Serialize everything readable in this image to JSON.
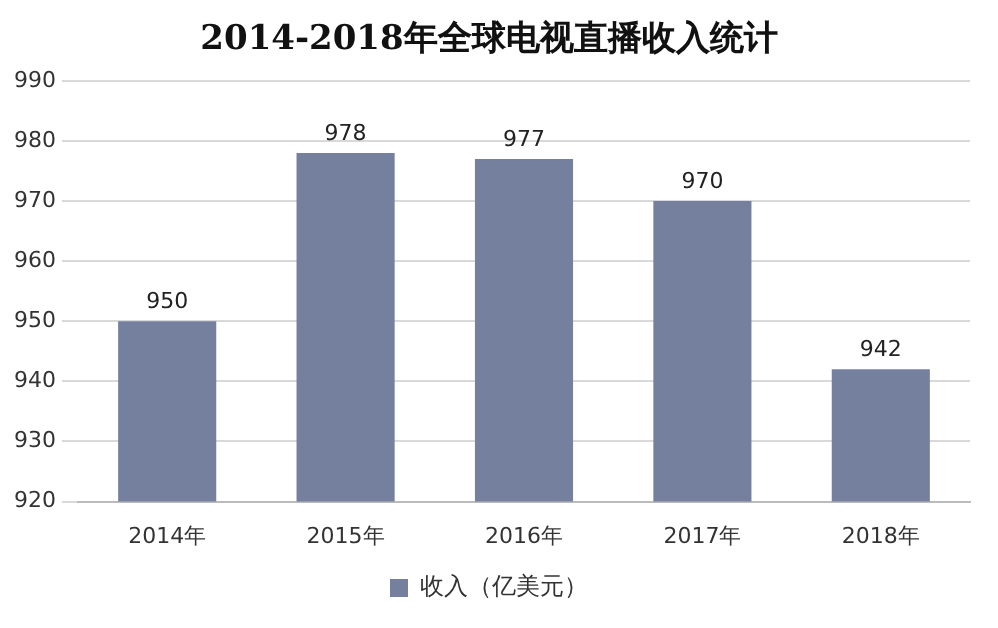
{
  "chart_data": {
    "type": "bar",
    "title": "2014-2018年全球电视直播收入统计",
    "categories": [
      "2014年",
      "2015年",
      "2016年",
      "2017年",
      "2018年"
    ],
    "series": [
      {
        "name": "收入（亿美元）",
        "color": "#75809f",
        "values": [
          950,
          978,
          977,
          970,
          942
        ]
      }
    ],
    "ylim": [
      920,
      990
    ],
    "yticks": [
      920,
      930,
      940,
      950,
      960,
      970,
      980,
      990
    ],
    "grid": "y",
    "legend": "bottom",
    "data_labels": true
  }
}
